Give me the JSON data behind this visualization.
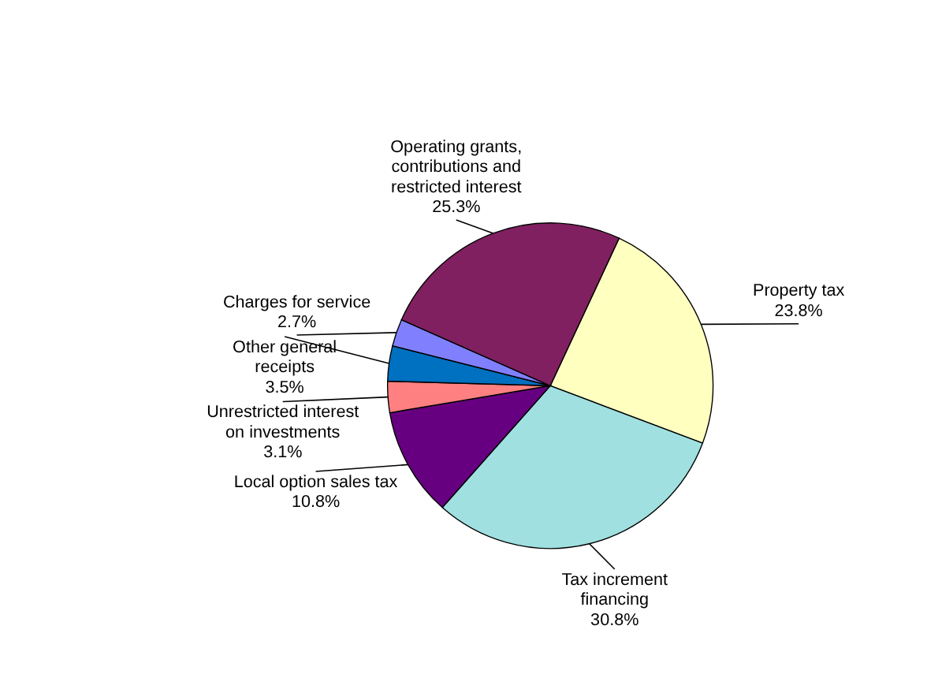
{
  "chart_data": {
    "type": "pie",
    "categories": [
      "Property tax",
      "Tax increment\nfinancing",
      "Local option sales tax",
      "Unrestricted interest\non investments",
      "Other general\nreceipts",
      "Charges for service",
      "Operating grants,\ncontributions and\nrestricted interest"
    ],
    "values": [
      23.8,
      30.8,
      10.8,
      3.1,
      3.5,
      2.7,
      25.3
    ],
    "value_labels": [
      "23.8%",
      "30.8%",
      "10.8%",
      "3.1%",
      "3.5%",
      "2.7%",
      "25.3%"
    ],
    "colors": [
      "#ffffc0",
      "#a0e0e0",
      "#660080",
      "#ff8080",
      "#0070c0",
      "#8080ff",
      "#802060"
    ]
  }
}
